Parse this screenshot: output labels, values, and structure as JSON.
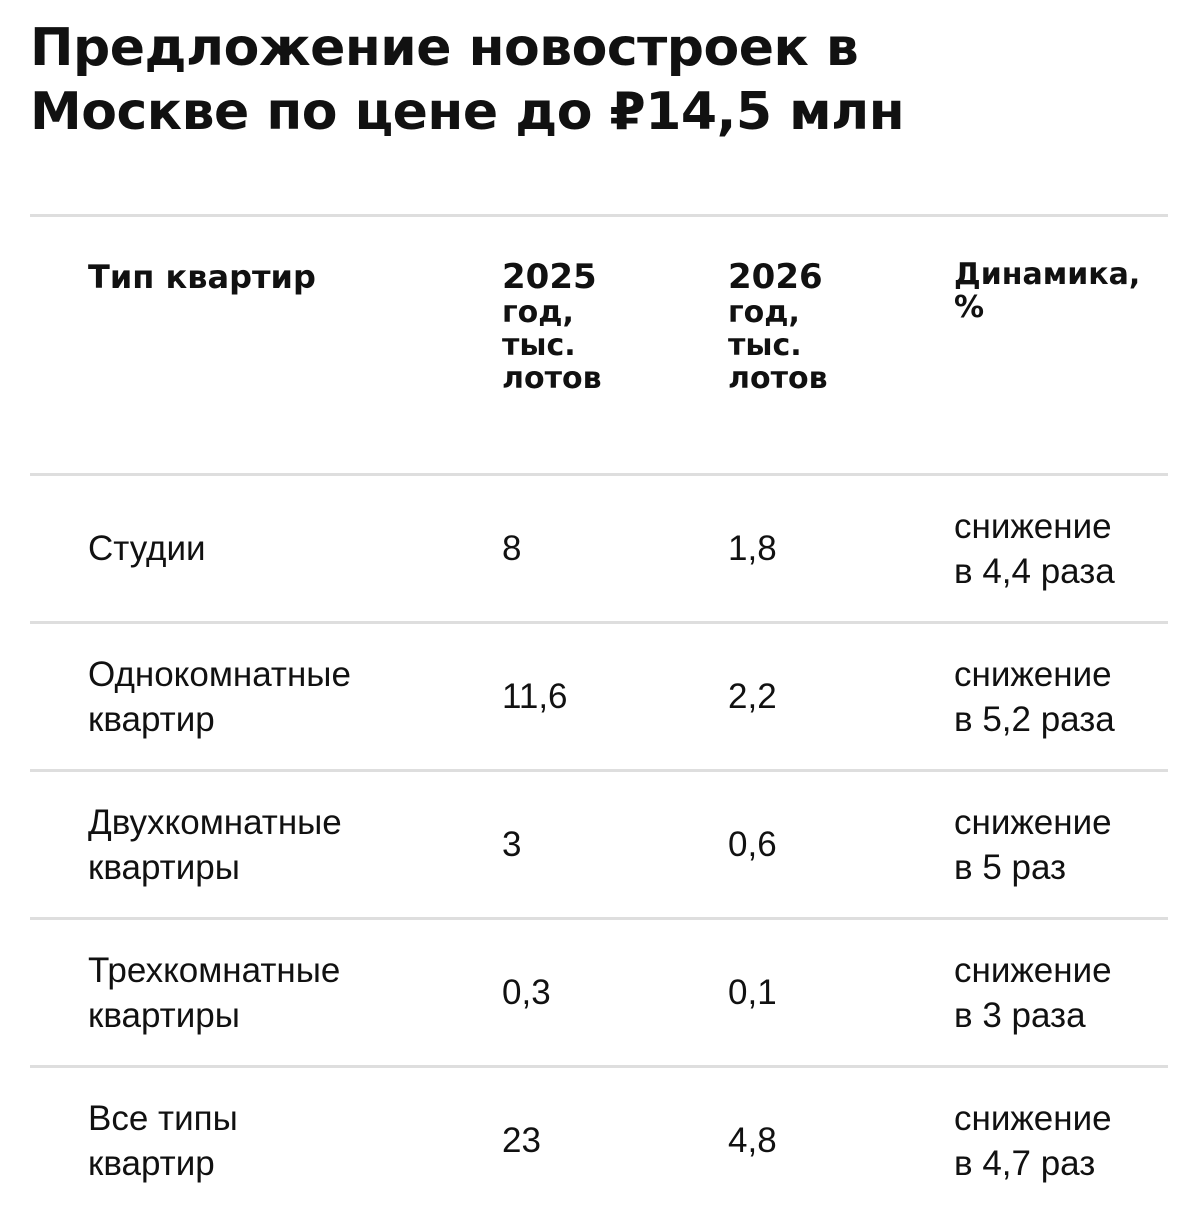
{
  "title": {
    "line1": "Предложение новостроек в",
    "line2": "Москве по цене до ₽14,5 млн"
  },
  "table": {
    "headers": {
      "type": "Тип квартир",
      "y2025": [
        "2025",
        "год,",
        "тыс.",
        "лотов"
      ],
      "y2026": [
        "2026",
        "год,",
        "тыс.",
        "лотов"
      ],
      "dynamics": [
        "Динамика,",
        "%"
      ]
    },
    "rows": [
      {
        "type": [
          "Студии"
        ],
        "v2025": "8",
        "v2026": "1,8",
        "dynamics": [
          "снижение",
          "в 4,4 раза"
        ]
      },
      {
        "type": [
          "Однокомнатные",
          "квартир"
        ],
        "v2025": "11,6",
        "v2026": "2,2",
        "dynamics": [
          "снижение",
          "в 5,2 раза"
        ]
      },
      {
        "type": [
          "Двухкомнатные",
          "квартиры"
        ],
        "v2025": "3",
        "v2026": "0,6",
        "dynamics": [
          "снижение",
          "в 5 раз"
        ]
      },
      {
        "type": [
          "Трехкомнатные",
          "квартиры"
        ],
        "v2025": "0,3",
        "v2026": "0,1",
        "dynamics": [
          "снижение",
          "в 3 раза"
        ]
      },
      {
        "type": [
          "Все типы",
          "квартир"
        ],
        "v2025": "23",
        "v2026": "4,8",
        "dynamics": [
          "снижение",
          "в 4,7 раз"
        ]
      }
    ]
  }
}
